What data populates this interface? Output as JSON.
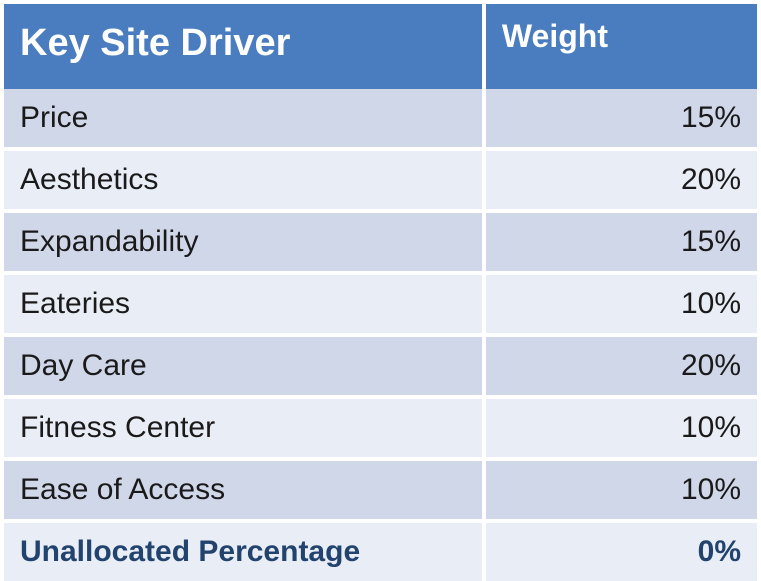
{
  "table": {
    "columns": {
      "driver": "Key Site Driver",
      "weight": "Weight"
    },
    "rows": [
      {
        "driver": "Price",
        "weight": "15%"
      },
      {
        "driver": "Aesthetics",
        "weight": "20%"
      },
      {
        "driver": "Expandability",
        "weight": "15%"
      },
      {
        "driver": "Eateries",
        "weight": "10%"
      },
      {
        "driver": "Day Care",
        "weight": "20%"
      },
      {
        "driver": "Fitness Center",
        "weight": "10%"
      },
      {
        "driver": "Ease of Access",
        "weight": "10%"
      }
    ],
    "footer": {
      "label": "Unallocated Percentage",
      "value": "0%"
    },
    "style": {
      "header_bg": "#4a7dc0",
      "header_fg": "#ffffff",
      "row_odd_bg": "#d0d7e9",
      "row_even_bg": "#e9edf6",
      "footer_fg": "#22436d",
      "border_color": "#ffffff",
      "header_driver_fontsize": 38,
      "header_weight_fontsize": 32,
      "cell_fontsize": 30
    }
  }
}
